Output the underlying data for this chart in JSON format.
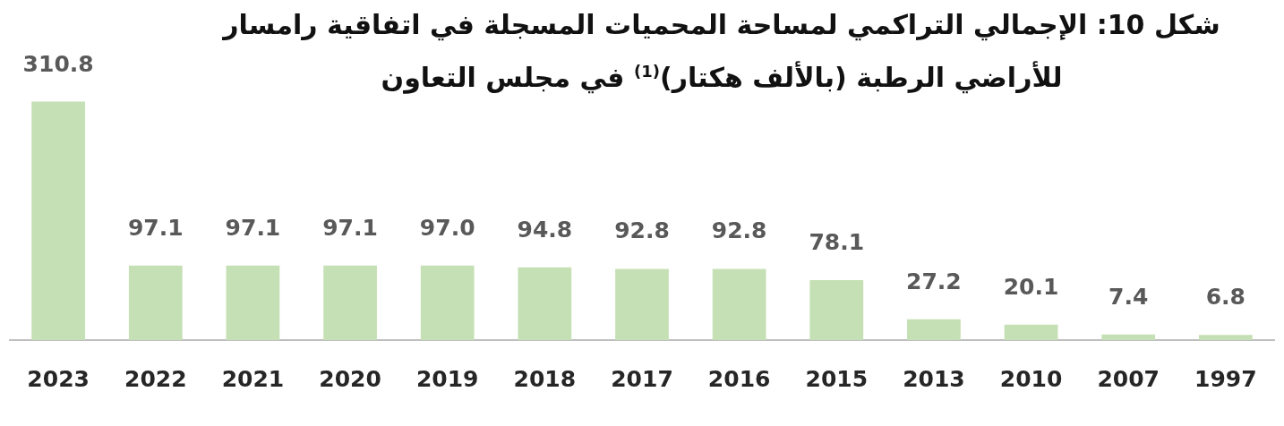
{
  "chart_data": {
    "type": "bar",
    "title": "شكل 10: الإجمالي التراكمي لمساحة المحميات المسجلة في اتفاقية رامسار للأراضي الرطبة (بالألف هكتار)$^{(1)}$ في مجلس التعاون",
    "categories": [
      "2023",
      "2022",
      "2021",
      "2020",
      "2019",
      "2018",
      "2017",
      "2016",
      "2015",
      "2013",
      "2010",
      "2007",
      "1997"
    ],
    "values": [
      310.8,
      97.1,
      97.1,
      97.1,
      97.0,
      94.8,
      92.8,
      92.8,
      78.1,
      27.2,
      20.1,
      7.4,
      6.8
    ],
    "value_labels": [
      "310.8",
      "97.1",
      "97.1",
      "97.1",
      "97.0",
      "94.8",
      "92.8",
      "92.8",
      "78.1",
      "27.2",
      "20.1",
      "7.4",
      "6.8"
    ],
    "color": "#c5e0b4",
    "grid": false,
    "legend": false
  }
}
